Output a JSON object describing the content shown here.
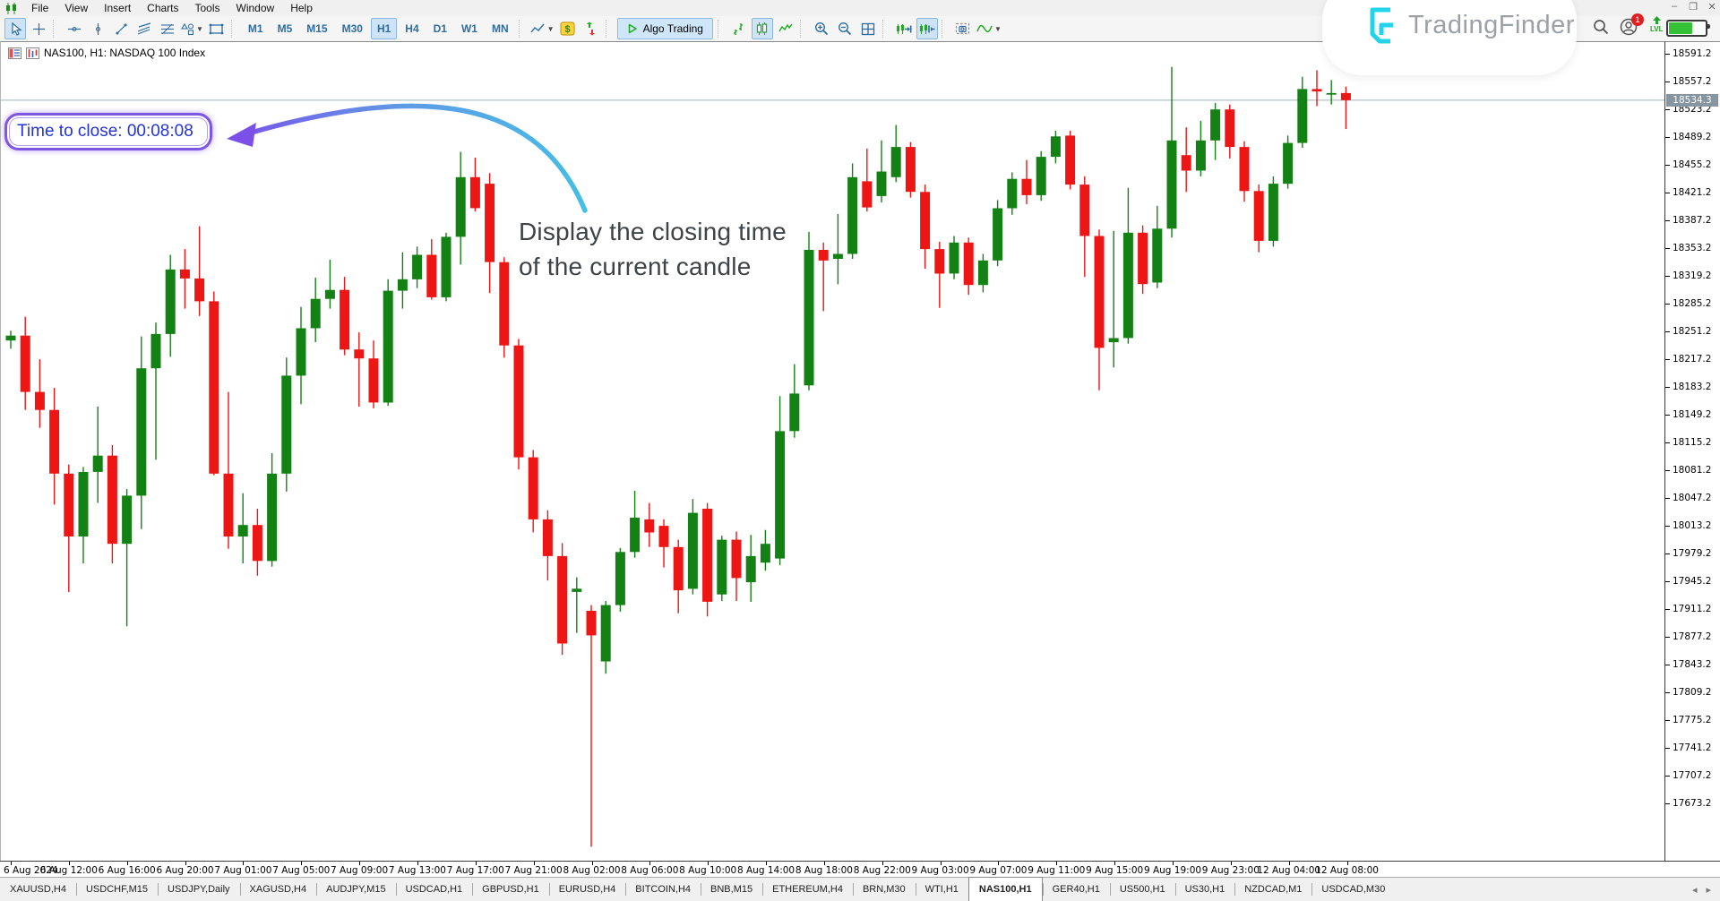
{
  "menubar": {
    "items": [
      "File",
      "View",
      "Insert",
      "Charts",
      "Tools",
      "Window",
      "Help"
    ],
    "window_controls": [
      {
        "name": "minimize",
        "glyph": "–"
      },
      {
        "name": "restore",
        "glyph": "❐"
      },
      {
        "name": "close",
        "glyph": "✕"
      }
    ]
  },
  "toolbar": {
    "algo_trading_label": "Algo Trading",
    "timeframes": {
      "items": [
        "M1",
        "M5",
        "M15",
        "M30",
        "H1",
        "H4",
        "D1",
        "W1",
        "MN"
      ],
      "active": "H1"
    }
  },
  "chart_header": {
    "title": "NAS100, H1: NASDAQ 100 Index"
  },
  "indicator_label": {
    "text": "Time to close: 00:08:08"
  },
  "annotation": {
    "line1": "Display the closing time",
    "line2": "of the current candle"
  },
  "watermark": {
    "brand": "TradingFinder",
    "notification_count": "1",
    "level_label": "LVL",
    "level_fill_percent": 62
  },
  "chart_data": {
    "type": "candlestick",
    "symbol": "NAS100",
    "timeframe": "H1",
    "description": "NASDAQ 100 Index",
    "current_price": 18534.3,
    "ylim": [
      17590,
      18600
    ],
    "grid": false,
    "colors": {
      "up": "#148114",
      "down": "#ee1515",
      "price_line": "#9fb0ba"
    },
    "price_axis_ticks": [
      18591.2,
      18557.2,
      18523.2,
      18489.2,
      18455.2,
      18421.2,
      18387.2,
      18353.2,
      18319.2,
      18285.2,
      18251.2,
      18217.2,
      18183.2,
      18149.2,
      18115.2,
      18081.2,
      18047.2,
      18013.2,
      17979.2,
      17945.2,
      17911.2,
      17877.2,
      17843.2,
      17809.2,
      17775.2,
      17741.2,
      17707.2,
      17673.2
    ],
    "time_axis_labels": [
      "6 Aug 2024",
      "6 Aug 12:00",
      "6 Aug 16:00",
      "6 Aug 20:00",
      "7 Aug 01:00",
      "7 Aug 05:00",
      "7 Aug 09:00",
      "7 Aug 13:00",
      "7 Aug 17:00",
      "7 Aug 21:00",
      "8 Aug 02:00",
      "8 Aug 06:00",
      "8 Aug 10:00",
      "8 Aug 14:00",
      "8 Aug 18:00",
      "8 Aug 22:00",
      "9 Aug 03:00",
      "9 Aug 07:00",
      "9 Aug 11:00",
      "9 Aug 15:00",
      "9 Aug 19:00",
      "9 Aug 23:00",
      "12 Aug 04:00",
      "12 Aug 08:00"
    ],
    "ohlc_format": "[open, high, low, close]",
    "candles": [
      [
        18240,
        18252,
        18230,
        18246
      ],
      [
        18246,
        18269,
        18155,
        18177
      ],
      [
        18177,
        18217,
        18133,
        18155
      ],
      [
        18155,
        18182,
        18039,
        18077
      ],
      [
        18077,
        18088,
        17932,
        18000
      ],
      [
        18000,
        18085,
        17967,
        18079
      ],
      [
        18079,
        18159,
        18041,
        18099
      ],
      [
        18099,
        18112,
        17967,
        17991
      ],
      [
        17991,
        18058,
        17890,
        18050
      ],
      [
        18050,
        18245,
        18009,
        18206
      ],
      [
        18206,
        18262,
        18094,
        18248
      ],
      [
        18248,
        18345,
        18220,
        18327
      ],
      [
        18327,
        18352,
        18279,
        18316
      ],
      [
        18316,
        18380,
        18270,
        18288
      ],
      [
        18288,
        18300,
        18075,
        18077
      ],
      [
        18077,
        18177,
        17985,
        18000
      ],
      [
        18000,
        18053,
        17967,
        18014
      ],
      [
        18014,
        18034,
        17952,
        17970
      ],
      [
        17970,
        18102,
        17963,
        18077
      ],
      [
        18077,
        18219,
        18055,
        18197
      ],
      [
        18197,
        18281,
        18162,
        18255
      ],
      [
        18255,
        18317,
        18238,
        18291
      ],
      [
        18291,
        18339,
        18279,
        18302
      ],
      [
        18302,
        18318,
        18222,
        18229
      ],
      [
        18229,
        18250,
        18159,
        18218
      ],
      [
        18218,
        18240,
        18157,
        18164
      ],
      [
        18164,
        18315,
        18160,
        18301
      ],
      [
        18301,
        18348,
        18279,
        18315
      ],
      [
        18315,
        18355,
        18304,
        18345
      ],
      [
        18345,
        18364,
        18290,
        18293
      ],
      [
        18293,
        18372,
        18288,
        18367
      ],
      [
        18367,
        18471,
        18333,
        18440
      ],
      [
        18440,
        18464,
        18398,
        18402
      ],
      [
        18432,
        18445,
        18298,
        18336
      ],
      [
        18336,
        18342,
        18219,
        18234
      ],
      [
        18234,
        18242,
        18082,
        18097
      ],
      [
        18097,
        18106,
        18005,
        18021
      ],
      [
        18021,
        18032,
        17946,
        17976
      ],
      [
        17976,
        17992,
        17855,
        17869
      ],
      [
        17932,
        17950,
        17882,
        17936
      ],
      [
        17909,
        17916,
        17620,
        17879
      ],
      [
        17847,
        17921,
        17832,
        17916
      ],
      [
        17916,
        17986,
        17908,
        17981
      ],
      [
        17981,
        18056,
        17974,
        18023
      ],
      [
        18021,
        18041,
        17987,
        18005
      ],
      [
        18013,
        18021,
        17962,
        17987
      ],
      [
        17987,
        17996,
        17906,
        17934
      ],
      [
        17936,
        18046,
        17929,
        18029
      ],
      [
        18034,
        18041,
        17902,
        17920
      ],
      [
        17929,
        18001,
        17921,
        17996
      ],
      [
        17996,
        18006,
        17921,
        17949
      ],
      [
        17944,
        18002,
        17920,
        17976
      ],
      [
        17968,
        18008,
        17958,
        17991
      ],
      [
        17973,
        18172,
        17965,
        18129
      ],
      [
        18129,
        18211,
        18121,
        18175
      ],
      [
        18185,
        18373,
        18179,
        18351
      ],
      [
        18351,
        18360,
        18276,
        18338
      ],
      [
        18340,
        18395,
        18309,
        18346
      ],
      [
        18346,
        18457,
        18340,
        18440
      ],
      [
        18435,
        18475,
        18398,
        18403
      ],
      [
        18417,
        18485,
        18409,
        18447
      ],
      [
        18440,
        18504,
        18434,
        18477
      ],
      [
        18477,
        18483,
        18415,
        18422
      ],
      [
        18422,
        18431,
        18328,
        18352
      ],
      [
        18352,
        18361,
        18280,
        18322
      ],
      [
        18322,
        18368,
        18315,
        18360
      ],
      [
        18360,
        18366,
        18296,
        18308
      ],
      [
        18308,
        18346,
        18299,
        18338
      ],
      [
        18338,
        18412,
        18331,
        18402
      ],
      [
        18402,
        18446,
        18394,
        18438
      ],
      [
        18438,
        18461,
        18407,
        18418
      ],
      [
        18418,
        18472,
        18411,
        18465
      ],
      [
        18465,
        18497,
        18457,
        18490
      ],
      [
        18491,
        18497,
        18425,
        18431
      ],
      [
        18431,
        18441,
        18318,
        18368
      ],
      [
        18368,
        18376,
        18179,
        18231
      ],
      [
        18238,
        18374,
        18207,
        18243
      ],
      [
        18243,
        18427,
        18236,
        18372
      ],
      [
        18372,
        18381,
        18297,
        18309
      ],
      [
        18311,
        18405,
        18304,
        18377
      ],
      [
        18377,
        18575,
        18366,
        18485
      ],
      [
        18467,
        18501,
        18422,
        18448
      ],
      [
        18448,
        18509,
        18441,
        18485
      ],
      [
        18485,
        18531,
        18461,
        18523
      ],
      [
        18523,
        18529,
        18463,
        18477
      ],
      [
        18477,
        18484,
        18410,
        18423
      ],
      [
        18423,
        18431,
        18348,
        18362
      ],
      [
        18362,
        18441,
        18355,
        18432
      ],
      [
        18432,
        18491,
        18426,
        18482
      ],
      [
        18482,
        18563,
        18476,
        18548
      ],
      [
        18548,
        18571,
        18527,
        18545
      ],
      [
        18541,
        18559,
        18529,
        18543
      ],
      [
        18543,
        18551,
        18499,
        18534.3
      ]
    ]
  },
  "tabbar": {
    "tabs": [
      "XAUUSD,H4",
      "USDCHF,M15",
      "USDJPY,Daily",
      "XAGUSD,H4",
      "AUDJPY,M15",
      "USDCAD,H1",
      "GBPUSD,H1",
      "EURUSD,H4",
      "BITCOIN,H4",
      "BNB,M15",
      "ETHEREUM,H4",
      "BRN,M30",
      "WTI,H1",
      "NAS100,H1",
      "GER40,H1",
      "US500,H1",
      "US30,H1",
      "NZDCAD,M1",
      "USDCAD,M30"
    ],
    "active": "NAS100,H1"
  }
}
